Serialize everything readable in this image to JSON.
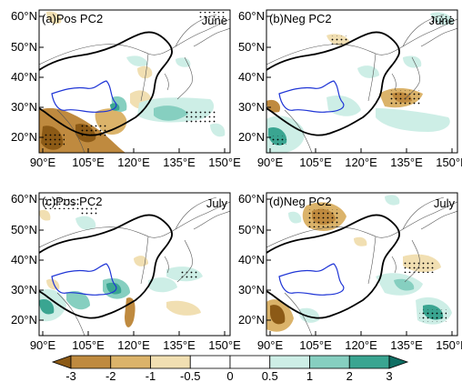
{
  "figure": {
    "panels": [
      {
        "id": "a",
        "title": "(a)Pos PC2",
        "month": "June"
      },
      {
        "id": "b",
        "title": "(b)Neg PC2",
        "month": "June"
      },
      {
        "id": "c",
        "title": "(c)Pos PC2",
        "month": "July"
      },
      {
        "id": "d",
        "title": "(d)Neg PC2",
        "month": "July"
      }
    ],
    "axes": {
      "lon_ticks": [
        "90°E",
        "105°E",
        "120°E",
        "135°E",
        "150°E"
      ],
      "lat_ticks": [
        "20°N",
        "30°N",
        "40°N",
        "50°N",
        "60°N"
      ]
    },
    "colorbar": {
      "levels": [
        "-3",
        "-2",
        "-1",
        "-0.5",
        "0",
        "0.5",
        "1",
        "2",
        "3"
      ],
      "colors": [
        "#8c5a16",
        "#bf8a3f",
        "#dbb36a",
        "#f1dfb2",
        "#ffffff",
        "#ffffff",
        "#cdeee6",
        "#86cfc0",
        "#3aa591",
        "#0f6e63"
      ]
    }
  }
}
